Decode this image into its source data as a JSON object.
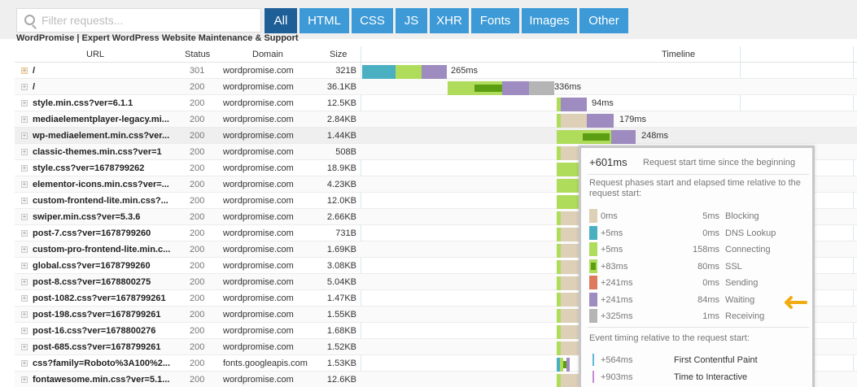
{
  "filter": {
    "placeholder": "Filter requests...",
    "buttons": [
      {
        "label": "All",
        "active": true
      },
      {
        "label": "HTML",
        "active": false
      },
      {
        "label": "CSS",
        "active": false
      },
      {
        "label": "JS",
        "active": false
      },
      {
        "label": "XHR",
        "active": false
      },
      {
        "label": "Fonts",
        "active": false
      },
      {
        "label": "Images",
        "active": false
      },
      {
        "label": "Other",
        "active": false
      }
    ]
  },
  "page_title": "WordPromise | Expert WordPress Website Maintenance & Support",
  "columns": {
    "url": "URL",
    "status": "Status",
    "domain": "Domain",
    "size": "Size",
    "timeline": "Timeline"
  },
  "colors": {
    "blocking": "#ddd0b7",
    "dns": "#4bafc2",
    "connecting": "#b0dc5c",
    "ssl": "#5c9e12",
    "sending": "#de7a5d",
    "waiting": "#9e8bc0",
    "receiving": "#b5b5b5",
    "fcp": "#5fb7dd",
    "tti": "#c78ad7"
  },
  "requests": [
    {
      "url": "/",
      "status": "301",
      "domain": "wordpromise.com",
      "size": "321B",
      "time": "265ms"
    },
    {
      "url": "/",
      "status": "200",
      "domain": "wordpromise.com",
      "size": "36.1KB",
      "time": "336ms"
    },
    {
      "url": "style.min.css?ver=6.1.1",
      "status": "200",
      "domain": "wordpromise.com",
      "size": "12.5KB",
      "time": "94ms"
    },
    {
      "url": "mediaelementplayer-legacy.mi...",
      "status": "200",
      "domain": "wordpromise.com",
      "size": "2.84KB",
      "time": "179ms"
    },
    {
      "url": "wp-mediaelement.min.css?ver...",
      "status": "200",
      "domain": "wordpromise.com",
      "size": "1.44KB",
      "time": "248ms"
    },
    {
      "url": "classic-themes.min.css?ver=1",
      "status": "200",
      "domain": "wordpromise.com",
      "size": "508B",
      "time": ""
    },
    {
      "url": "style.css?ver=1678799262",
      "status": "200",
      "domain": "wordpromise.com",
      "size": "18.9KB",
      "time": ""
    },
    {
      "url": "elementor-icons.min.css?ver=...",
      "status": "200",
      "domain": "wordpromise.com",
      "size": "4.23KB",
      "time": ""
    },
    {
      "url": "custom-frontend-lite.min.css?...",
      "status": "200",
      "domain": "wordpromise.com",
      "size": "12.0KB",
      "time": ""
    },
    {
      "url": "swiper.min.css?ver=5.3.6",
      "status": "200",
      "domain": "wordpromise.com",
      "size": "2.66KB",
      "time": ""
    },
    {
      "url": "post-7.css?ver=1678799260",
      "status": "200",
      "domain": "wordpromise.com",
      "size": "731B",
      "time": ""
    },
    {
      "url": "custom-pro-frontend-lite.min.c...",
      "status": "200",
      "domain": "wordpromise.com",
      "size": "1.69KB",
      "time": ""
    },
    {
      "url": "global.css?ver=1678799260",
      "status": "200",
      "domain": "wordpromise.com",
      "size": "3.08KB",
      "time": ""
    },
    {
      "url": "post-8.css?ver=1678800275",
      "status": "200",
      "domain": "wordpromise.com",
      "size": "5.04KB",
      "time": ""
    },
    {
      "url": "post-1082.css?ver=1678799261",
      "status": "200",
      "domain": "wordpromise.com",
      "size": "1.47KB",
      "time": ""
    },
    {
      "url": "post-198.css?ver=1678799261",
      "status": "200",
      "domain": "wordpromise.com",
      "size": "1.55KB",
      "time": ""
    },
    {
      "url": "post-16.css?ver=1678800276",
      "status": "200",
      "domain": "wordpromise.com",
      "size": "1.68KB",
      "time": ""
    },
    {
      "url": "post-685.css?ver=1678799261",
      "status": "200",
      "domain": "wordpromise.com",
      "size": "1.52KB",
      "time": ""
    },
    {
      "url": "css?family=Roboto%3A100%2...",
      "status": "200",
      "domain": "fonts.googleapis.com",
      "size": "1.53KB",
      "time": ""
    },
    {
      "url": "fontawesome.min.css?ver=5.1...",
      "status": "200",
      "domain": "wordpromise.com",
      "size": "12.6KB",
      "time": ""
    }
  ],
  "tooltip": {
    "start_value": "+601ms",
    "start_desc": "Request start time since the beginning",
    "phases_desc": "Request phases start and elapsed time relative to the request start:",
    "phases": [
      {
        "start": "0ms",
        "elapsed": "5ms",
        "name": "Blocking",
        "color_key": "blocking"
      },
      {
        "start": "+5ms",
        "elapsed": "0ms",
        "name": "DNS Lookup",
        "color_key": "dns"
      },
      {
        "start": "+5ms",
        "elapsed": "158ms",
        "name": "Connecting",
        "color_key": "connecting"
      },
      {
        "start": "+83ms",
        "elapsed": "80ms",
        "name": "SSL",
        "color_key": "ssl"
      },
      {
        "start": "+241ms",
        "elapsed": "0ms",
        "name": "Sending",
        "color_key": "sending"
      },
      {
        "start": "+241ms",
        "elapsed": "84ms",
        "name": "Waiting",
        "color_key": "waiting"
      },
      {
        "start": "+325ms",
        "elapsed": "1ms",
        "name": "Receiving",
        "color_key": "receiving"
      }
    ],
    "events_desc": "Event timing relative to the request start:",
    "events": [
      {
        "start": "+564ms",
        "name": "First Contentful Paint",
        "color_key": "fcp"
      },
      {
        "start": "+903ms",
        "name": "Time to Interactive",
        "color_key": "tti"
      }
    ]
  }
}
